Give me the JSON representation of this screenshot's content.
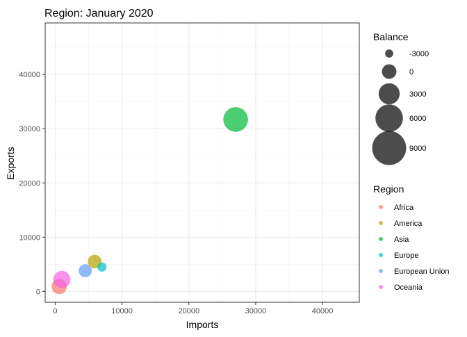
{
  "chart_data": {
    "type": "scatter",
    "title": "Region: January 2020",
    "xlabel": "Imports",
    "ylabel": "Exports",
    "xlim": [
      -1500,
      45500
    ],
    "ylim": [
      -2000,
      49500
    ],
    "x_ticks": [
      0,
      10000,
      20000,
      30000,
      40000
    ],
    "y_ticks": [
      0,
      10000,
      20000,
      30000,
      40000
    ],
    "x_tick_labels": [
      "0",
      "10000",
      "20000",
      "30000",
      "40000"
    ],
    "y_tick_labels": [
      "0",
      "10000",
      "20000",
      "30000",
      "40000"
    ],
    "grid": true,
    "size_legend": {
      "title": "Balance",
      "items": [
        {
          "label": "-3000",
          "value": -3000
        },
        {
          "label": "0",
          "value": 0
        },
        {
          "label": "3000",
          "value": 3000
        },
        {
          "label": "6000",
          "value": 6000
        },
        {
          "label": "9000",
          "value": 9000
        }
      ]
    },
    "color_legend": {
      "title": "Region",
      "items": [
        {
          "label": "Africa",
          "color": "#F8766D"
        },
        {
          "label": "America",
          "color": "#B79F00"
        },
        {
          "label": "Asia",
          "color": "#00BA38"
        },
        {
          "label": "Europe",
          "color": "#00BFC4"
        },
        {
          "label": "European Union",
          "color": "#619CFF"
        },
        {
          "label": "Oceania",
          "color": "#F564E3"
        }
      ]
    },
    "series": [
      {
        "name": "Africa",
        "color": "#F8766D",
        "points": [
          {
            "x": 600,
            "y": 900,
            "balance": 300
          }
        ]
      },
      {
        "name": "America",
        "color": "#B79F00",
        "points": [
          {
            "x": 5900,
            "y": 5500,
            "balance": -400
          }
        ]
      },
      {
        "name": "Asia",
        "color": "#00BA38",
        "points": [
          {
            "x": 27000,
            "y": 31700,
            "balance": 4700
          }
        ]
      },
      {
        "name": "Europe",
        "color": "#00BFC4",
        "points": [
          {
            "x": 7000,
            "y": 4500,
            "balance": -2500
          }
        ]
      },
      {
        "name": "European Union",
        "color": "#619CFF",
        "points": [
          {
            "x": 4500,
            "y": 3800,
            "balance": -700
          }
        ]
      },
      {
        "name": "Oceania",
        "color": "#F564E3",
        "points": [
          {
            "x": 1000,
            "y": 2200,
            "balance": 1200
          }
        ]
      }
    ]
  }
}
